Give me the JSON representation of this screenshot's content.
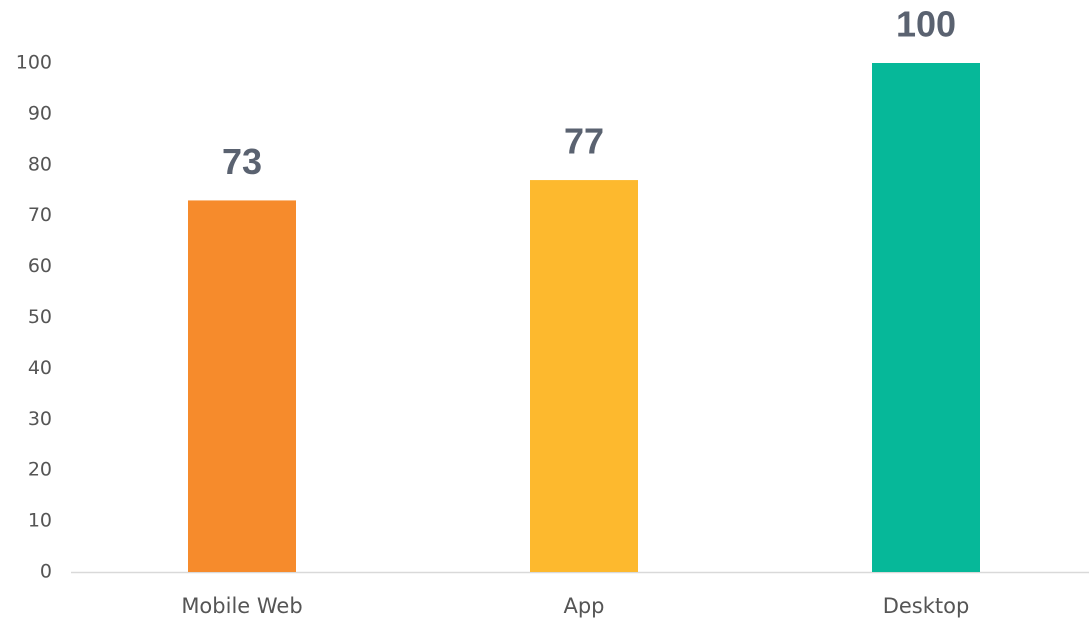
{
  "chart_data": {
    "type": "bar",
    "categories": [
      "Mobile Web",
      "App",
      "Desktop"
    ],
    "values": [
      73,
      77,
      100
    ],
    "colors": [
      "#f68b2c",
      "#fdb92e",
      "#06b899"
    ],
    "ylim": [
      0,
      100
    ],
    "yticks": [
      0,
      10,
      20,
      30,
      40,
      50,
      60,
      70,
      80,
      90,
      100
    ],
    "grid": false,
    "data_labels": true
  }
}
